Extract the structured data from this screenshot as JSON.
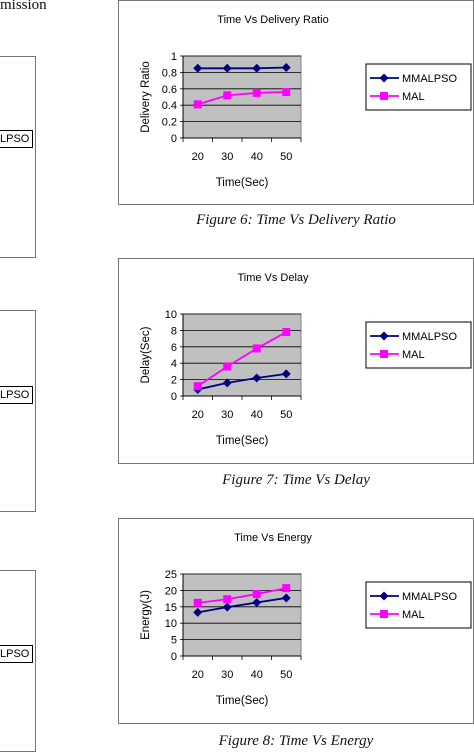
{
  "page_fragments": {
    "top_left_text": "mission",
    "left_legend_stub_1": "LPSO",
    "left_legend_stub_2": "LPSO",
    "left_legend_stub_3": "LPSO"
  },
  "colors": {
    "plot_bg": "#c0c0c0",
    "series_mmalpso": "#000080",
    "series_mal": "#ff00ff"
  },
  "charts": [
    {
      "caption": "Figure 6: Time Vs Delivery Ratio",
      "ytick_labels": [
        "0",
        "0.2",
        "0.4",
        "0.6",
        "0.8",
        "1"
      ]
    },
    {
      "caption": "Figure 7: Time Vs Delay",
      "ytick_labels": [
        "0",
        "2",
        "4",
        "6",
        "8",
        "10"
      ]
    },
    {
      "caption": "Figure 8: Time Vs Energy",
      "ytick_labels": [
        "0",
        "5",
        "10",
        "15",
        "20",
        "25"
      ]
    }
  ],
  "chart_data": [
    {
      "type": "line",
      "title": "Time Vs Delivery Ratio",
      "xlabel": "Time(Sec)",
      "ylabel": "Delivery Ratio",
      "categories": [
        "20",
        "30",
        "40",
        "50"
      ],
      "ylim": [
        0,
        1
      ],
      "grid": true,
      "legend": "right",
      "series": [
        {
          "name": "MMALPSO",
          "values": [
            0.85,
            0.85,
            0.85,
            0.86
          ],
          "marker": "diamond",
          "color": "#000080"
        },
        {
          "name": "MAL",
          "values": [
            0.41,
            0.52,
            0.55,
            0.56
          ],
          "marker": "square",
          "color": "#ff00ff"
        }
      ]
    },
    {
      "type": "line",
      "title": "Time Vs Delay",
      "xlabel": "Time(Sec)",
      "ylabel": "Delay(Sec)",
      "categories": [
        "20",
        "30",
        "40",
        "50"
      ],
      "ylim": [
        0,
        10
      ],
      "grid": true,
      "legend": "right",
      "series": [
        {
          "name": "MMALPSO",
          "values": [
            0.8,
            1.6,
            2.2,
            2.7
          ],
          "marker": "diamond",
          "color": "#000080"
        },
        {
          "name": "MAL",
          "values": [
            1.2,
            3.6,
            5.8,
            7.8
          ],
          "marker": "square",
          "color": "#ff00ff"
        }
      ]
    },
    {
      "type": "line",
      "title": "Time Vs Energy",
      "xlabel": "Time(Sec)",
      "ylabel": "Energy(J)",
      "categories": [
        "20",
        "30",
        "40",
        "50"
      ],
      "ylim": [
        0,
        25
      ],
      "grid": true,
      "legend": "right",
      "series": [
        {
          "name": "MMALPSO",
          "values": [
            13.3,
            14.9,
            16.3,
            17.7
          ],
          "marker": "diamond",
          "color": "#000080"
        },
        {
          "name": "MAL",
          "values": [
            16.2,
            17.3,
            18.9,
            20.7
          ],
          "marker": "square",
          "color": "#ff00ff"
        }
      ]
    }
  ]
}
